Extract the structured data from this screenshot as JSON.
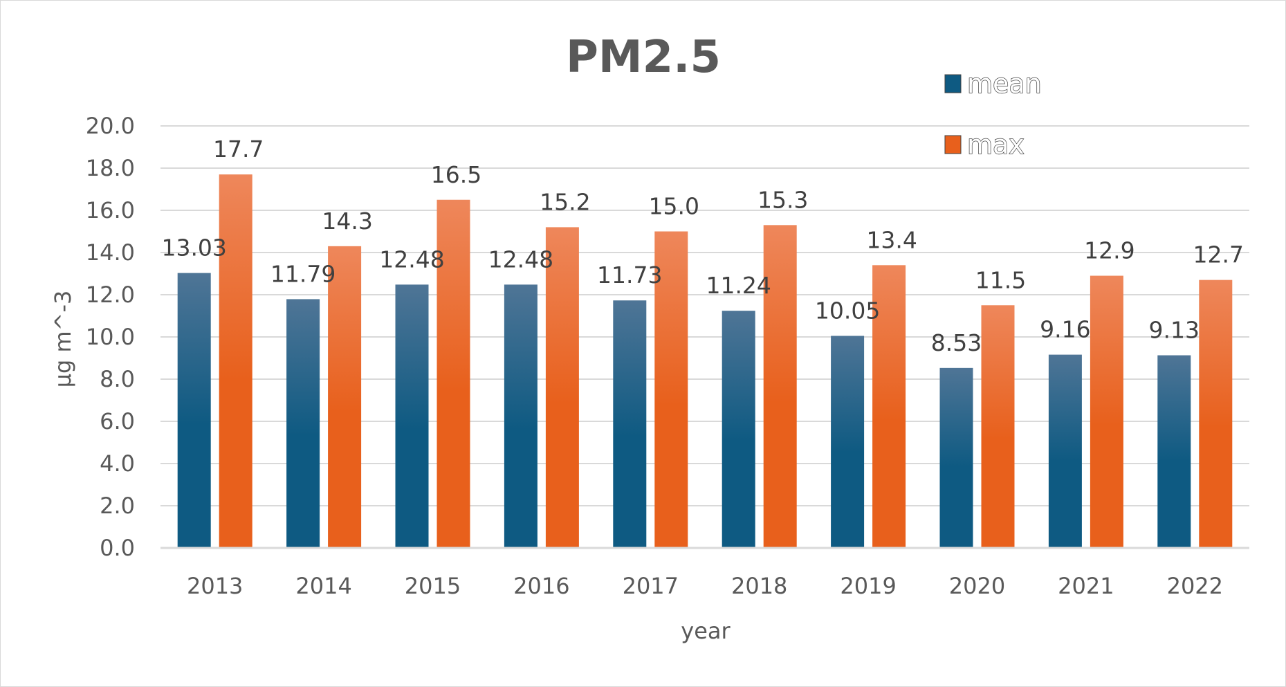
{
  "chart_data": {
    "type": "bar",
    "title": "PM2.5",
    "xlabel": "year",
    "ylabel": "µg m^-3",
    "categories": [
      "2013",
      "2014",
      "2015",
      "2016",
      "2017",
      "2018",
      "2019",
      "2020",
      "2021",
      "2022"
    ],
    "series": [
      {
        "name": "mean",
        "values": [
          13.03,
          11.79,
          12.48,
          12.48,
          11.73,
          11.24,
          10.05,
          8.53,
          9.16,
          9.13
        ],
        "labels": [
          "13.03",
          "11.79",
          "12.48",
          "12.48",
          "11.73",
          "11.24",
          "10.05",
          "8.53",
          "9.16",
          "9.13"
        ],
        "color": "#0e5a82",
        "color_light": "#4f7596"
      },
      {
        "name": "max",
        "values": [
          17.7,
          14.3,
          16.5,
          15.2,
          15.0,
          15.3,
          13.4,
          11.5,
          12.9,
          12.7
        ],
        "labels": [
          "17.7",
          "14.3",
          "16.5",
          "15.2",
          "15.0",
          "15.3",
          "13.4",
          "11.5",
          "12.9",
          "12.7"
        ],
        "color": "#e8601c",
        "color_light": "#ee875b"
      }
    ],
    "ylim": [
      0,
      20
    ],
    "yticks": [
      "0.0",
      "2.0",
      "4.0",
      "6.0",
      "8.0",
      "10.0",
      "12.0",
      "14.0",
      "16.0",
      "18.0",
      "20.0"
    ],
    "grid": true,
    "legend_position": "top-right"
  }
}
